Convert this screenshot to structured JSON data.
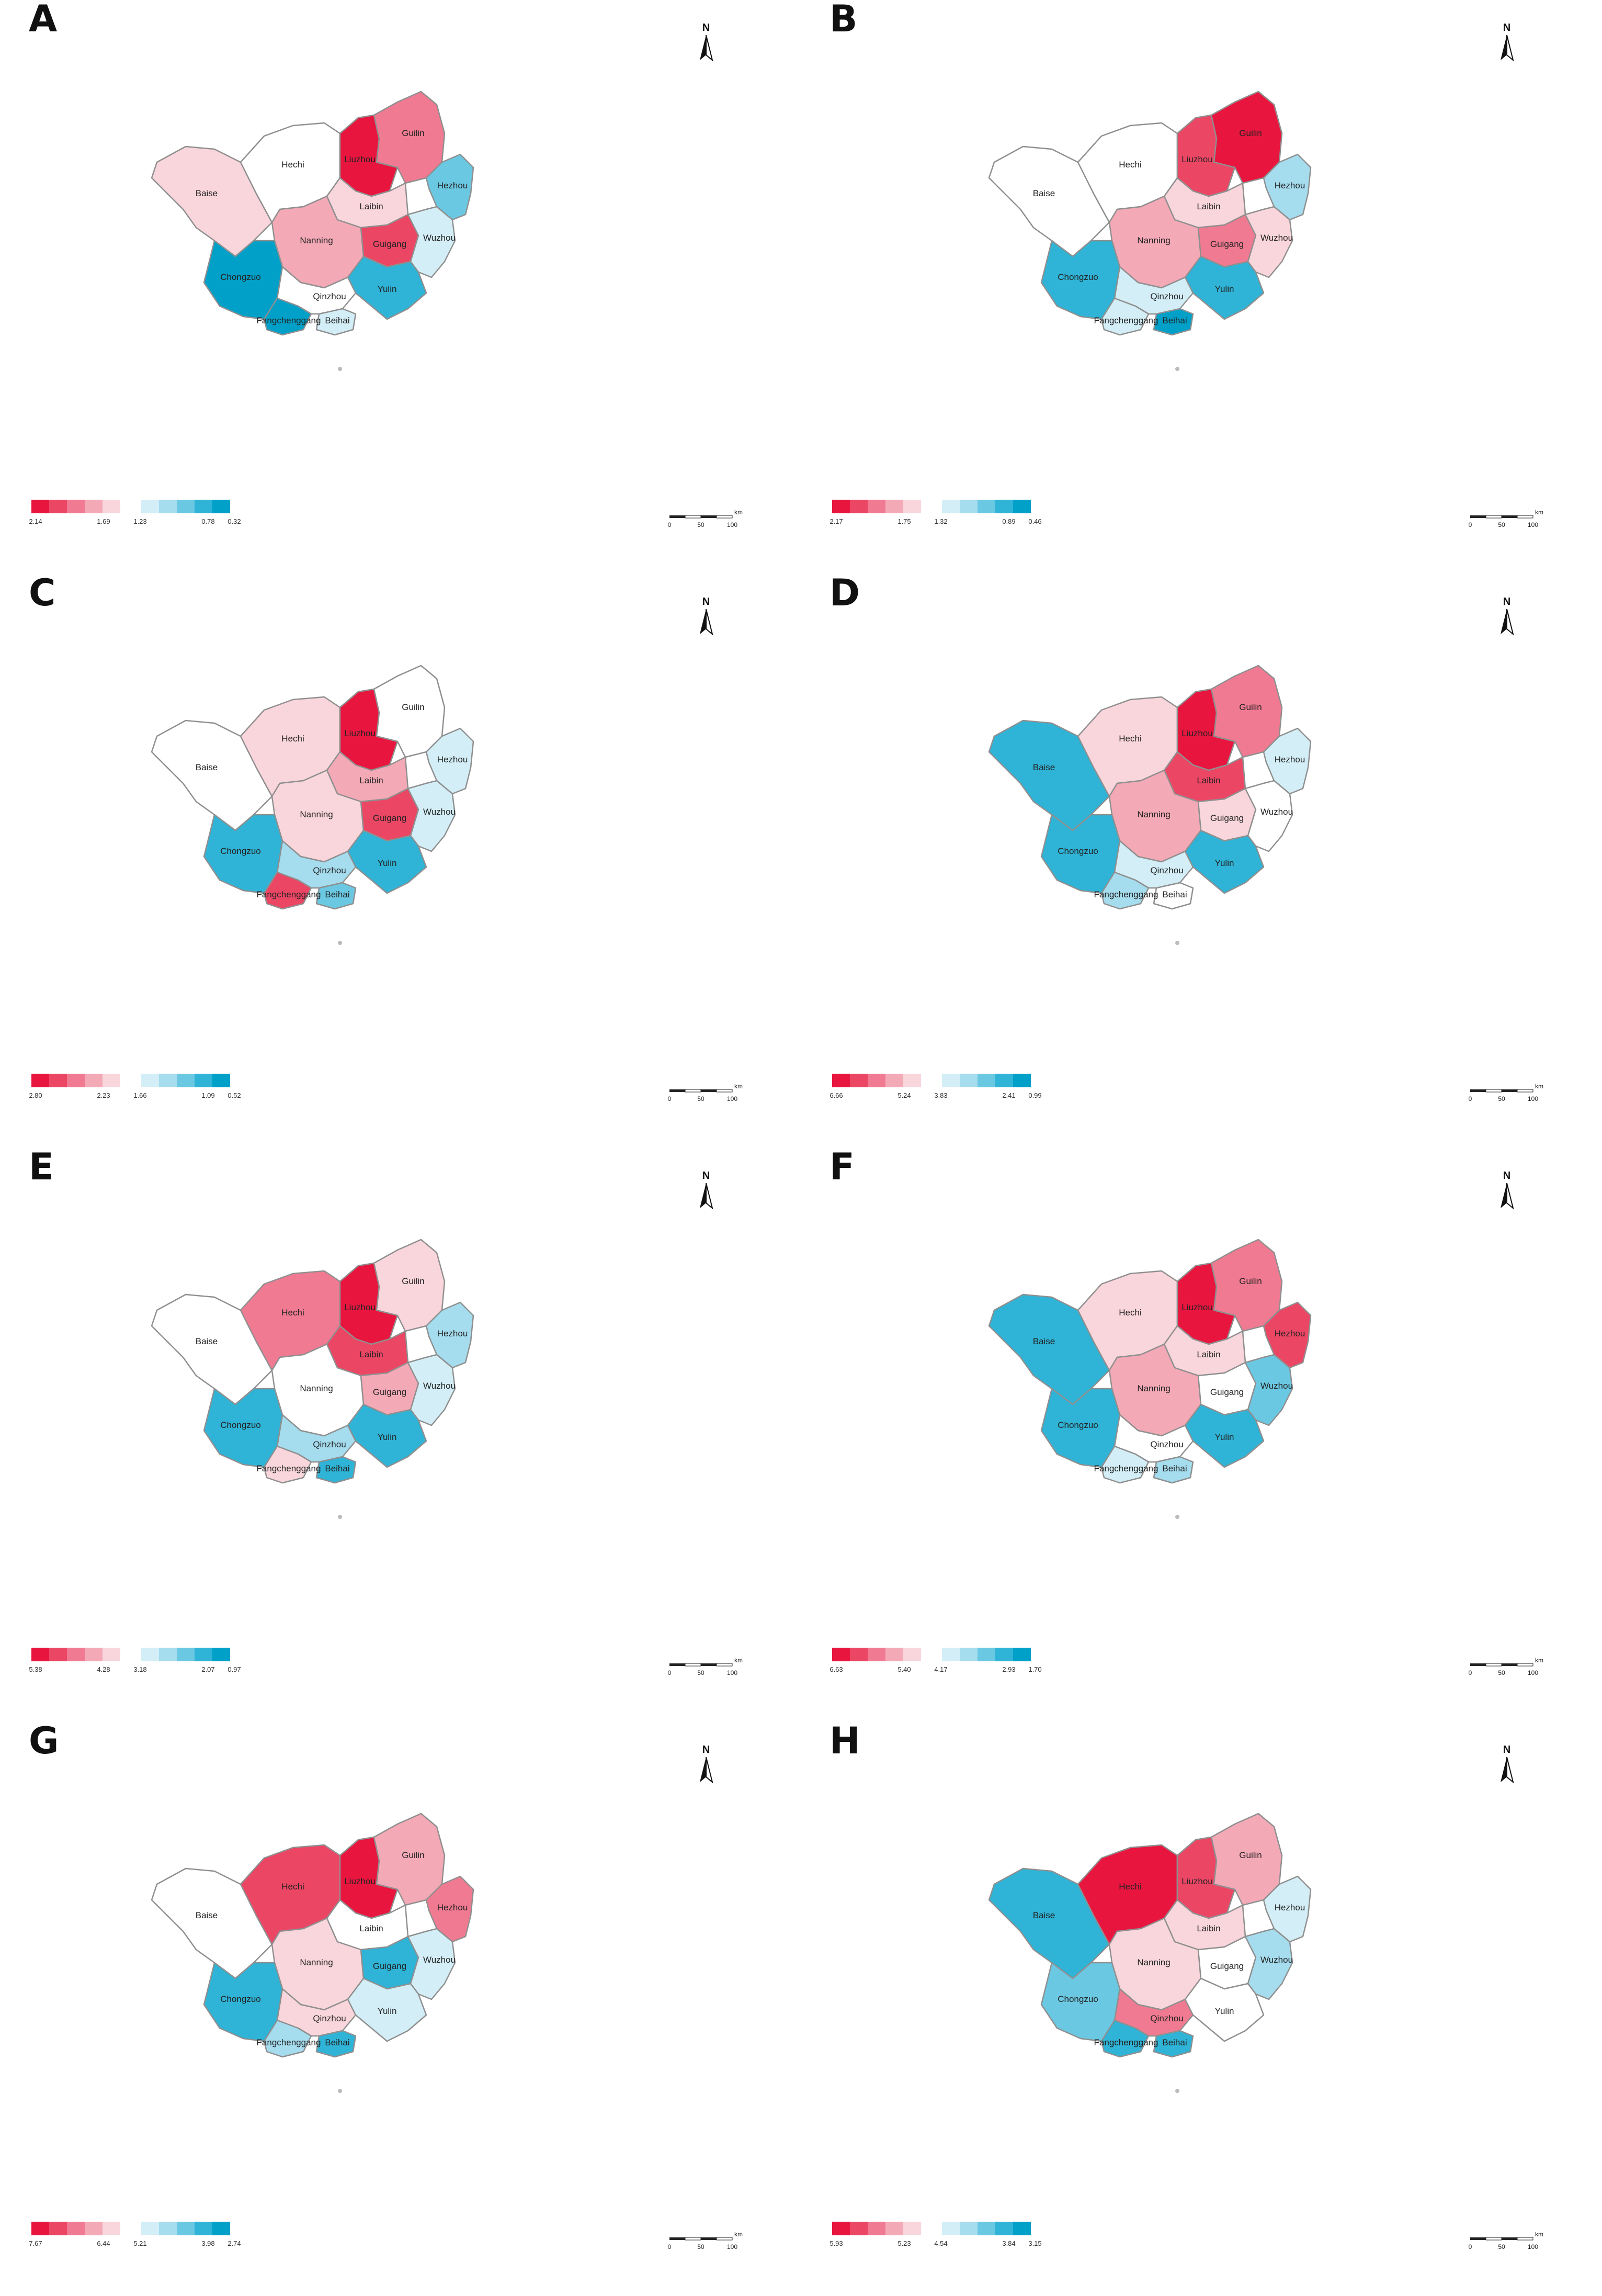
{
  "colors": {
    "red": [
      "#e8163f",
      "#ec4665",
      "#f07a91",
      "#f4a9b6",
      "#f9d6dc"
    ],
    "blue": [
      "#d3eef6",
      "#a5dcee",
      "#6bc8e2",
      "#2fb3d6",
      "#00a0c8"
    ],
    "white": "#ffffff",
    "border": "#8f8f8f"
  },
  "region_names": [
    "Baise",
    "Hechi",
    "Liuzhou",
    "Guilin",
    "Hezhou",
    "Laibin",
    "Nanning",
    "Guigang",
    "Wuzhou",
    "Chongzuo",
    "Qinzhou",
    "Yulin",
    "Fangchenggang",
    "Beihai"
  ],
  "north_label": "N",
  "scale": {
    "ticks": [
      "0",
      "50",
      "100"
    ],
    "unit": "km"
  },
  "panels": [
    {
      "label": "A",
      "legend": [
        "2.14",
        "1.69",
        "1.23",
        "0.78",
        "0.32"
      ],
      "fills": {
        "Baise": "r5",
        "Hechi": "w",
        "Liuzhou": "r1",
        "Guilin": "r3",
        "Hezhou": "b3",
        "Laibin": "r5",
        "Nanning": "r4",
        "Guigang": "r2",
        "Wuzhou": "b1",
        "Chongzuo": "b5",
        "Qinzhou": "w",
        "Yulin": "b4",
        "Fangchenggang": "b5",
        "Beihai": "b1"
      },
      "labels": [
        "Hechi",
        "Liuzhou",
        "Guilin",
        "Hezhou",
        "Baise",
        "Laibin",
        "Nanning",
        "Guigang",
        "Wuzhou",
        "Chongzuo",
        "Yulin",
        "Qinzhou",
        "Fangchenggang",
        "Beihai"
      ]
    },
    {
      "label": "B",
      "legend": [
        "2.17",
        "1.75",
        "1.32",
        "0.89",
        "0.46"
      ],
      "fills": {
        "Baise": "w",
        "Hechi": "w",
        "Liuzhou": "r2",
        "Guilin": "r1",
        "Hezhou": "b2",
        "Laibin": "r5",
        "Nanning": "r4",
        "Guigang": "r3",
        "Wuzhou": "r5",
        "Chongzuo": "b4",
        "Qinzhou": "b1",
        "Yulin": "b4",
        "Fangchenggang": "b1",
        "Beihai": "b5"
      },
      "labels": [
        "Hechi",
        "Liuzhou",
        "Guilin",
        "Hezhou",
        "Baise",
        "Laibin",
        "Nanning",
        "Guigang",
        "Wuzhou",
        "Chongzuo",
        "Yulin",
        "Qinzhou",
        "Fangchenggang",
        "Beihai"
      ]
    },
    {
      "label": "C",
      "legend": [
        "2.80",
        "2.23",
        "1.66",
        "1.09",
        "0.52"
      ],
      "fills": {
        "Baise": "w",
        "Hechi": "r5",
        "Liuzhou": "r1",
        "Guilin": "w",
        "Hezhou": "b1",
        "Laibin": "r4",
        "Nanning": "r5",
        "Guigang": "r2",
        "Wuzhou": "b1",
        "Chongzuo": "b4",
        "Qinzhou": "b2",
        "Yulin": "b4",
        "Fangchenggang": "r2",
        "Beihai": "b3"
      },
      "labels": [
        "Hechi",
        "Liuzhou",
        "Guilin",
        "Hezhou",
        "Baise",
        "Laibin",
        "Nanning",
        "Guigang",
        "Wuzhou",
        "Chongzuo",
        "Yulin",
        "Qinzhou",
        "Fangchenggang",
        "Beihai"
      ]
    },
    {
      "label": "D",
      "legend": [
        "6.66",
        "5.24",
        "3.83",
        "2.41",
        "0.99"
      ],
      "fills": {
        "Baise": "b4",
        "Hechi": "r5",
        "Liuzhou": "r1",
        "Guilin": "r3",
        "Hezhou": "b1",
        "Laibin": "r2",
        "Nanning": "r4",
        "Guigang": "r5",
        "Wuzhou": "w",
        "Chongzuo": "b4",
        "Qinzhou": "b1",
        "Yulin": "b4",
        "Fangchenggang": "b2",
        "Beihai": "w"
      },
      "labels": [
        "Hechi",
        "Liuzhou",
        "Guilin",
        "Hezhou",
        "Baise",
        "Laibin",
        "Nanning",
        "Guigang",
        "Wuzhou",
        "Chongzuo",
        "Yulin",
        "Qinzhou",
        "Fangchenggang",
        "Beihai"
      ]
    },
    {
      "label": "E",
      "legend": [
        "5.38",
        "4.28",
        "3.18",
        "2.07",
        "0.97"
      ],
      "fills": {
        "Baise": "w",
        "Hechi": "r3",
        "Liuzhou": "r1",
        "Guilin": "r5",
        "Hezhou": "b2",
        "Laibin": "r2",
        "Nanning": "w",
        "Guigang": "r4",
        "Wuzhou": "b1",
        "Chongzuo": "b4",
        "Qinzhou": "b2",
        "Yulin": "b4",
        "Fangchenggang": "r5",
        "Beihai": "b4"
      },
      "labels": [
        "Hechi",
        "Liuzhou",
        "Guilin",
        "Hezhou",
        "Baise",
        "Laibin",
        "Nanning",
        "Guigang",
        "Wuzhou",
        "Chongzuo",
        "Yulin",
        "Qinzhou",
        "Fangchenggang",
        "Beihai"
      ]
    },
    {
      "label": "F",
      "legend": [
        "6.63",
        "5.40",
        "4.17",
        "2.93",
        "1.70"
      ],
      "fills": {
        "Baise": "b4",
        "Hechi": "r5",
        "Liuzhou": "r1",
        "Guilin": "r3",
        "Hezhou": "r2",
        "Laibin": "r5",
        "Nanning": "r4",
        "Guigang": "w",
        "Wuzhou": "b3",
        "Chongzuo": "b4",
        "Qinzhou": "w",
        "Yulin": "b4",
        "Fangchenggang": "b1",
        "Beihai": "b2"
      },
      "labels": [
        "Hechi",
        "Liuzhou",
        "Guilin",
        "Hezhou",
        "Baise",
        "Laibin",
        "Nanning",
        "Guigang",
        "Wuzhou",
        "Chongzuo",
        "Yulin",
        "Qinzhou",
        "Fangchenggang",
        "Beihai"
      ]
    },
    {
      "label": "G",
      "legend": [
        "7.67",
        "6.44",
        "5.21",
        "3.98",
        "2.74"
      ],
      "fills": {
        "Baise": "w",
        "Hechi": "r2",
        "Liuzhou": "r1",
        "Guilin": "r4",
        "Hezhou": "r3",
        "Laibin": "w",
        "Nanning": "r5",
        "Guigang": "b4",
        "Wuzhou": "b1",
        "Chongzuo": "b4",
        "Qinzhou": "r5",
        "Yulin": "b1",
        "Fangchenggang": "b2",
        "Beihai": "b4"
      },
      "labels": [
        "Hechi",
        "Liuzhou",
        "Guilin",
        "Hezhou",
        "Baise",
        "Laibin",
        "Nanning",
        "Guigang",
        "Wuzhou",
        "Chongzuo",
        "Yulin",
        "Qinzhou",
        "Fangchenggang",
        "Beihai"
      ]
    },
    {
      "label": "H",
      "legend": [
        "5.93",
        "5.23",
        "4.54",
        "3.84",
        "3.15"
      ],
      "fills": {
        "Baise": "b4",
        "Hechi": "r1",
        "Liuzhou": "r2",
        "Guilin": "r4",
        "Hezhou": "b1",
        "Laibin": "r5",
        "Nanning": "r5",
        "Guigang": "w",
        "Wuzhou": "b2",
        "Chongzuo": "b3",
        "Qinzhou": "r3",
        "Yulin": "w",
        "Fangchenggang": "b4",
        "Beihai": "b4"
      },
      "labels": [
        "Hechi",
        "Liuzhou",
        "Guilin",
        "Hezhou",
        "Baise",
        "Laibin",
        "Nanning",
        "Guigang",
        "Wuzhou",
        "Chongzuo",
        "Yulin",
        "Qinzhou",
        "Fangchenggang",
        "Beihai"
      ]
    }
  ]
}
